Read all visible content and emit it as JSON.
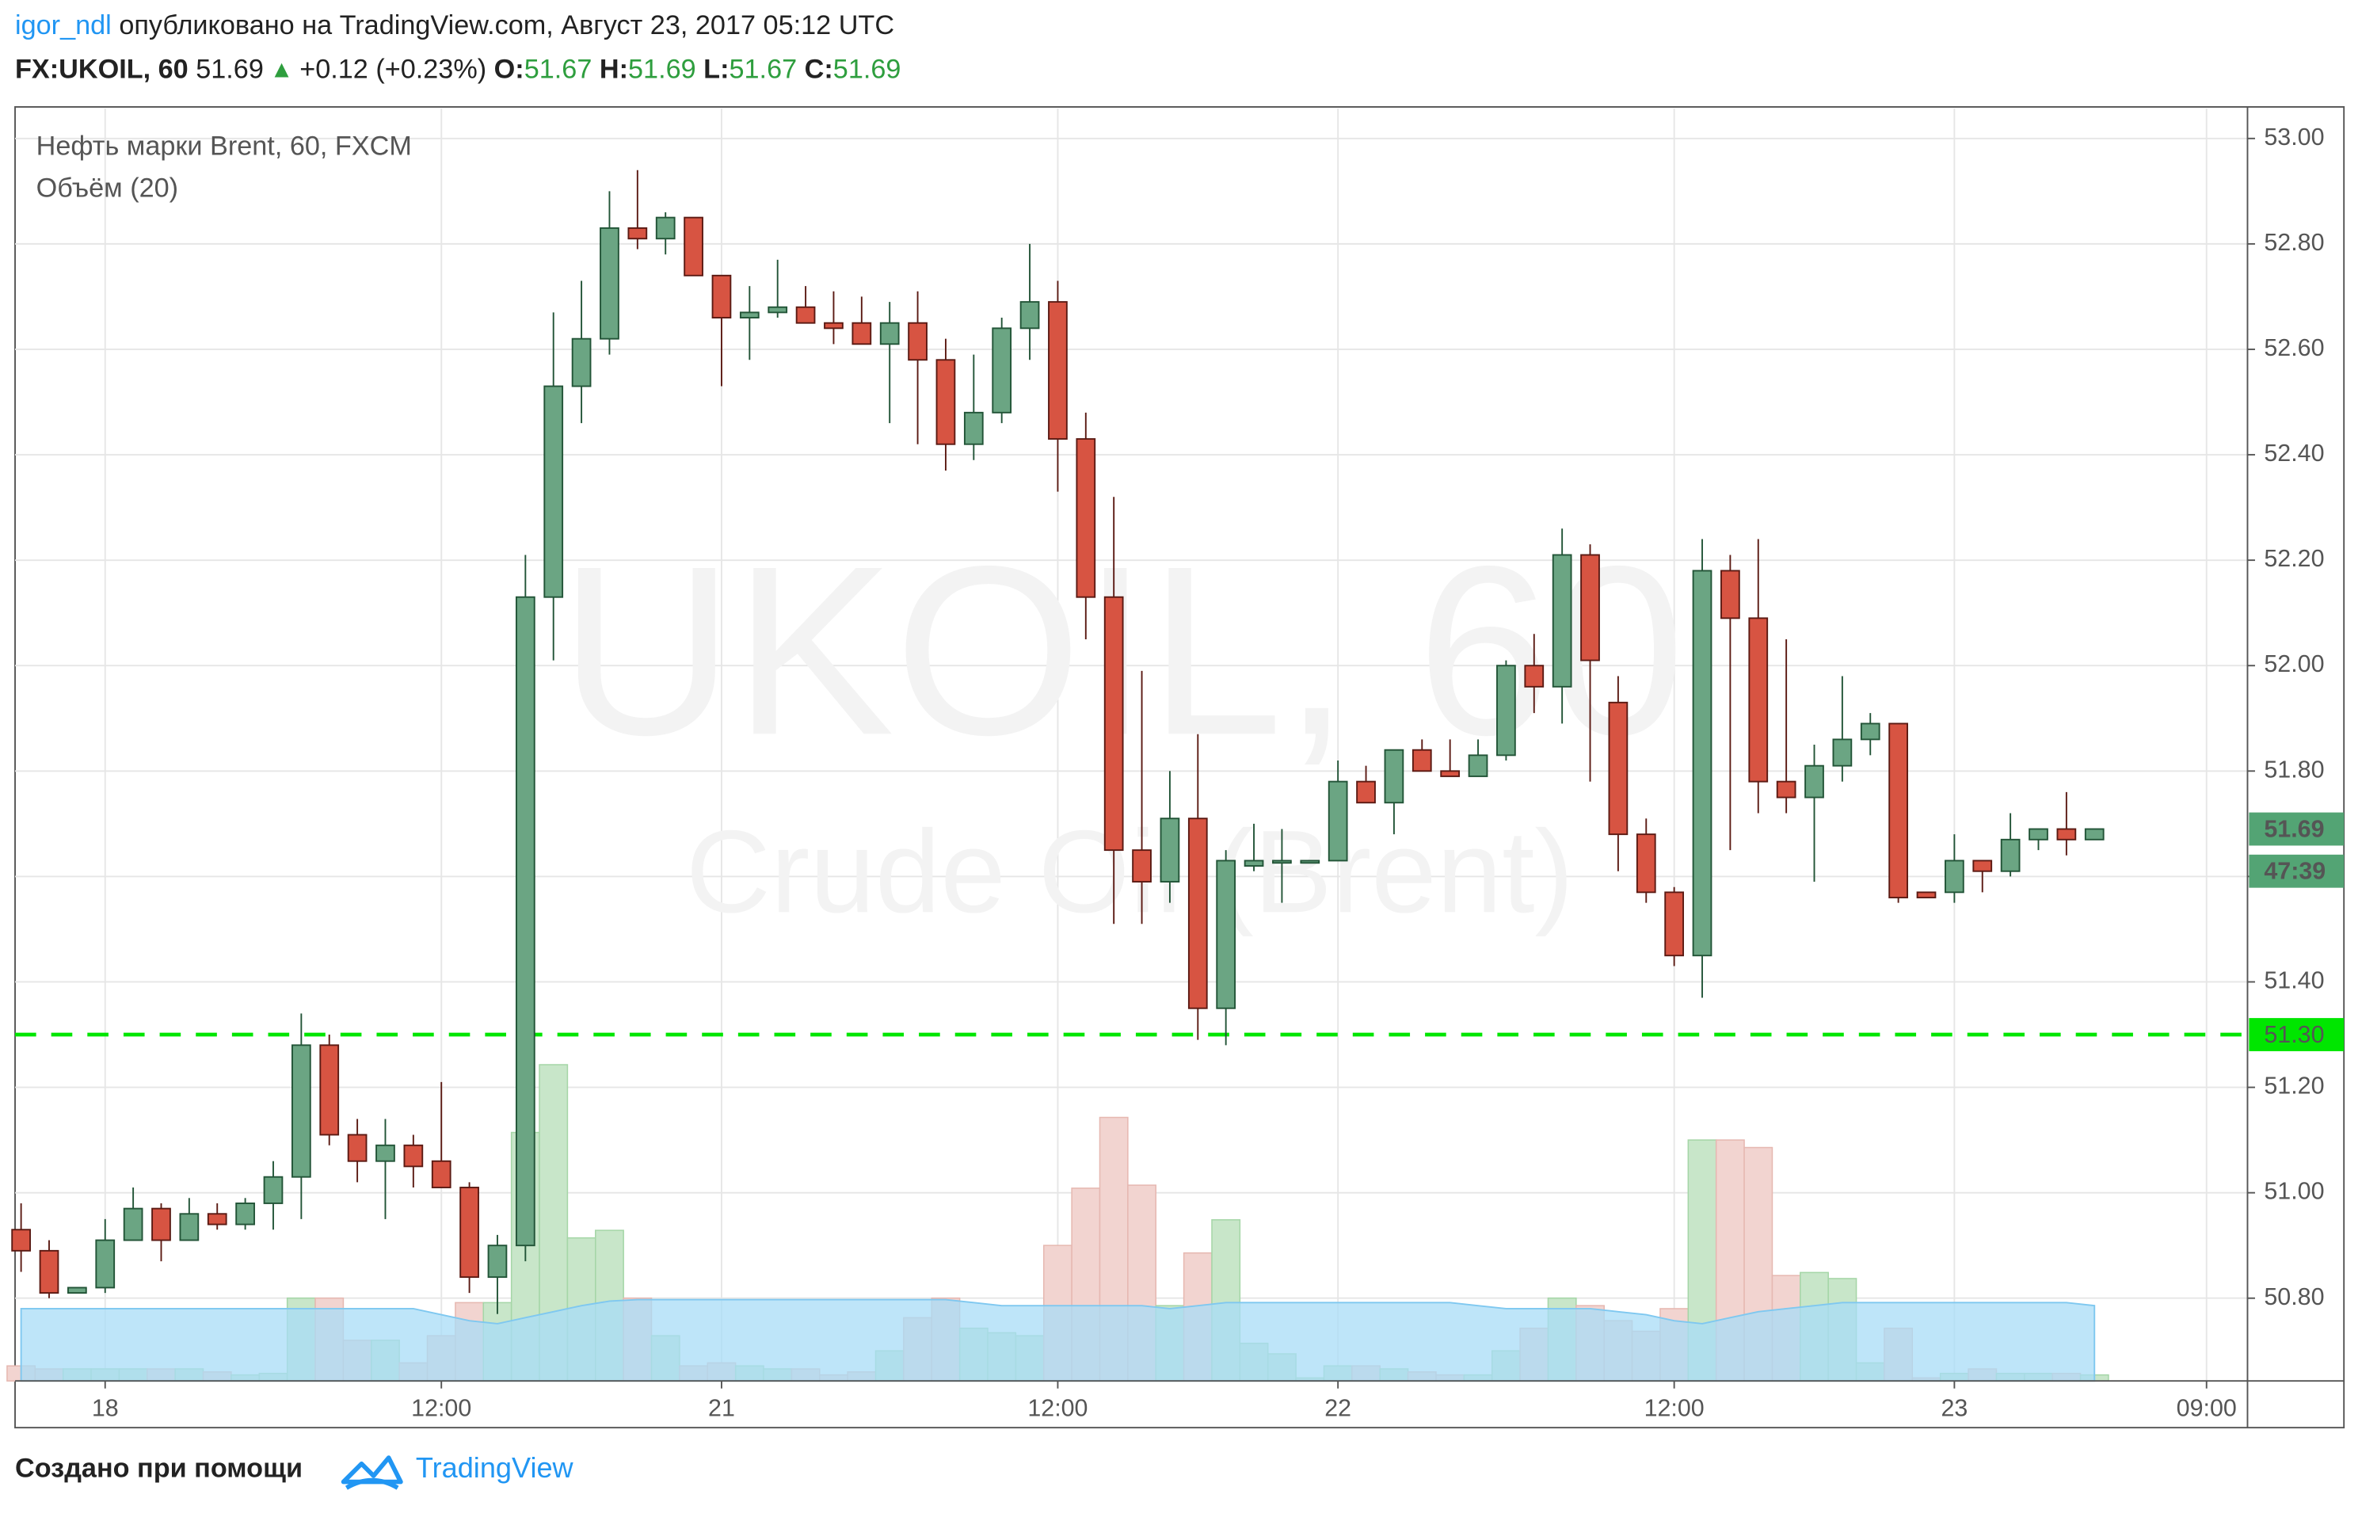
{
  "header": {
    "author": "igor_ndl",
    "published": "опубликовано на TradingView.com, Август 23, 2017 05:12 UTC",
    "symbol": "FX:UKOIL, 60",
    "price": "51.69",
    "change": "+0.12 (+0.23%)",
    "o_label": "O:",
    "o_value": "51.67",
    "h_label": "H:",
    "h_value": "51.69",
    "l_label": "L:",
    "l_value": "51.67",
    "c_label": "C:",
    "c_value": "51.69"
  },
  "watermark": {
    "symbol": "UKOIL, 60",
    "description": "Crude Oil (Brent)"
  },
  "footer": {
    "text": "Создано при помощи",
    "brand": "TradingView"
  },
  "chart_data": {
    "type": "candlestick",
    "title": "Нефть марки Brent, 60, FXCM",
    "subtitle": "Объём (20)",
    "categories": [
      null,
      null,
      null,
      "18",
      null,
      null,
      null,
      null,
      null,
      null,
      null,
      null,
      null,
      null,
      null,
      "12:00",
      null,
      null,
      null,
      null,
      null,
      null,
      null,
      null,
      null,
      "21",
      null,
      null,
      null,
      null,
      null,
      null,
      null,
      null,
      null,
      null,
      null,
      "12:00",
      null,
      null,
      null,
      null,
      null,
      null,
      null,
      null,
      null,
      "22",
      null,
      null,
      null,
      null,
      null,
      null,
      null,
      null,
      null,
      null,
      null,
      "12:00",
      null,
      null,
      null,
      null,
      null,
      null,
      null,
      null,
      null,
      "23",
      null,
      null,
      null,
      null,
      null,
      null,
      null,
      null,
      "09:00",
      null
    ],
    "open": [
      50.93,
      50.89,
      50.81,
      50.82,
      50.91,
      50.97,
      50.91,
      50.96,
      50.94,
      50.98,
      51.03,
      51.28,
      51.11,
      51.06,
      51.09,
      51.06,
      51.01,
      50.84,
      50.9,
      52.13,
      52.53,
      52.62,
      52.83,
      52.81,
      52.85,
      52.74,
      52.66,
      52.67,
      52.68,
      52.65,
      52.65,
      52.61,
      52.65,
      52.58,
      52.42,
      52.48,
      52.64,
      52.69,
      52.43,
      52.13,
      51.65,
      51.59,
      51.71,
      51.35,
      51.62,
      51.63,
      51.63,
      51.63,
      51.78,
      51.74,
      51.84,
      51.8,
      51.79,
      51.83,
      52.0,
      51.96,
      52.21,
      51.93,
      51.68,
      51.57,
      51.45,
      52.18,
      52.09,
      51.78,
      51.75,
      51.81,
      51.86,
      51.89,
      51.57,
      51.57,
      51.63,
      51.61,
      51.67,
      51.69,
      51.67,
      null,
      null,
      null,
      null,
      null
    ],
    "high": [
      50.98,
      50.91,
      50.82,
      50.95,
      51.01,
      50.98,
      50.99,
      50.98,
      50.99,
      51.06,
      51.34,
      51.3,
      51.14,
      51.14,
      51.11,
      51.21,
      51.02,
      50.92,
      52.21,
      52.67,
      52.73,
      52.9,
      52.94,
      52.86,
      52.85,
      52.74,
      52.72,
      52.77,
      52.72,
      52.71,
      52.7,
      52.69,
      52.71,
      52.62,
      52.59,
      52.66,
      52.8,
      52.73,
      52.48,
      52.32,
      51.99,
      51.8,
      51.87,
      51.65,
      51.7,
      51.69,
      51.63,
      51.82,
      51.81,
      51.84,
      51.86,
      51.86,
      51.86,
      52.01,
      52.06,
      52.26,
      52.23,
      51.98,
      51.71,
      51.58,
      52.24,
      52.21,
      52.24,
      52.05,
      51.85,
      51.98,
      51.91,
      51.89,
      51.57,
      51.68,
      51.63,
      51.72,
      51.69,
      51.76,
      51.69,
      null,
      null,
      null,
      null,
      null
    ],
    "low": [
      50.85,
      50.8,
      50.81,
      50.81,
      50.91,
      50.87,
      50.91,
      50.93,
      50.93,
      50.93,
      50.95,
      51.09,
      51.02,
      50.95,
      51.01,
      51.01,
      50.81,
      50.77,
      50.87,
      52.01,
      52.46,
      52.59,
      52.79,
      52.78,
      52.74,
      52.53,
      52.58,
      52.66,
      52.65,
      52.61,
      52.61,
      52.46,
      52.42,
      52.37,
      52.39,
      52.46,
      52.58,
      52.33,
      52.05,
      51.51,
      51.51,
      51.55,
      51.29,
      51.28,
      51.61,
      51.55,
      51.63,
      51.63,
      51.74,
      51.68,
      51.8,
      51.79,
      51.79,
      51.82,
      51.91,
      51.89,
      51.78,
      51.61,
      51.55,
      51.43,
      51.37,
      51.65,
      51.72,
      51.72,
      51.59,
      51.78,
      51.83,
      51.55,
      51.56,
      51.55,
      51.57,
      51.6,
      51.65,
      51.64,
      51.67,
      null,
      null,
      null,
      null,
      null
    ],
    "close": [
      50.89,
      50.81,
      50.82,
      50.91,
      50.97,
      50.91,
      50.96,
      50.94,
      50.98,
      51.03,
      51.28,
      51.11,
      51.06,
      51.09,
      51.05,
      51.01,
      50.84,
      50.9,
      52.13,
      52.53,
      52.62,
      52.83,
      52.81,
      52.85,
      52.74,
      52.66,
      52.67,
      52.68,
      52.65,
      52.64,
      52.61,
      52.65,
      52.58,
      52.42,
      52.48,
      52.64,
      52.69,
      52.43,
      52.13,
      51.65,
      51.59,
      51.71,
      51.35,
      51.63,
      51.63,
      51.63,
      51.63,
      51.78,
      51.74,
      51.84,
      51.8,
      51.79,
      51.83,
      52.0,
      51.96,
      52.21,
      52.01,
      51.68,
      51.57,
      51.45,
      52.18,
      52.09,
      51.78,
      51.75,
      51.81,
      51.86,
      51.89,
      51.56,
      51.56,
      51.63,
      51.61,
      51.67,
      51.69,
      51.67,
      51.69,
      null,
      null,
      null,
      null,
      null
    ],
    "volume": [
      10,
      8,
      8,
      8,
      8,
      8,
      8,
      6,
      4,
      5,
      55,
      55,
      27,
      27,
      12,
      30,
      52,
      52,
      165,
      210,
      95,
      100,
      55,
      30,
      10,
      12,
      10,
      8,
      8,
      4,
      6,
      20,
      42,
      55,
      35,
      32,
      30,
      90,
      128,
      175,
      130,
      50,
      85,
      107,
      25,
      18,
      2,
      10,
      10,
      8,
      6,
      4,
      4,
      20,
      35,
      55,
      50,
      40,
      33,
      48,
      160,
      160,
      155,
      70,
      72,
      68,
      12,
      35,
      2,
      5,
      8,
      5,
      5,
      5,
      4,
      null,
      null,
      null,
      null,
      null
    ],
    "volume_ma": [
      48,
      48,
      48,
      48,
      48,
      48,
      48,
      48,
      48,
      48,
      48,
      48,
      48,
      48,
      48,
      44,
      40,
      38,
      42,
      46,
      50,
      53,
      54,
      54,
      54,
      54,
      54,
      54,
      54,
      54,
      54,
      54,
      54,
      54,
      52,
      50,
      50,
      50,
      50,
      50,
      50,
      48,
      50,
      52,
      52,
      52,
      52,
      52,
      52,
      52,
      52,
      52,
      50,
      48,
      48,
      48,
      48,
      46,
      44,
      40,
      38,
      42,
      46,
      48,
      50,
      52,
      52,
      52,
      52,
      52,
      52,
      52,
      52,
      52,
      50,
      null,
      null,
      null,
      null,
      null
    ],
    "ylim": [
      50.643,
      53.057
    ],
    "yticks": [
      {
        "value": 50.8,
        "label": "50.80"
      },
      {
        "value": 51,
        "label": "51.00"
      },
      {
        "value": 51.2,
        "label": "51.20"
      },
      {
        "value": 51.4,
        "label": "51.40"
      },
      {
        "value": 51.6,
        "label": "51.60"
      },
      {
        "value": 51.8,
        "label": "51.80"
      },
      {
        "value": 52,
        "label": "52.00"
      },
      {
        "value": 52.2,
        "label": "52.20"
      },
      {
        "value": 52.4,
        "label": "52.40"
      },
      {
        "value": 52.6,
        "label": "52.60"
      },
      {
        "value": 52.8,
        "label": "52.80"
      },
      {
        "value": 53,
        "label": "53.00"
      }
    ],
    "volume_ylim": [
      0,
      845
    ],
    "grid": true,
    "up_color": "#6ba583",
    "down_color": "#d75442",
    "up_border": "#225437",
    "down_border": "#5b1a13",
    "volume_up_color": "#c8e6c9",
    "volume_down_color": "#f2d4d0",
    "volume_ma_color": "#a8dcf7",
    "hline": {
      "value": 51.3,
      "label": "51.30",
      "color": "#00e600"
    },
    "last_price": {
      "value": 51.69,
      "label": "51.69",
      "countdown": "47:39",
      "color": "#53a474"
    }
  }
}
